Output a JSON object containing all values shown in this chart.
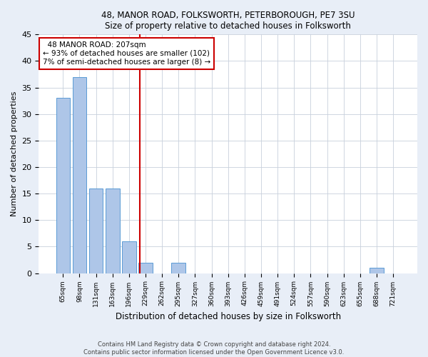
{
  "title1": "48, MANOR ROAD, FOLKSWORTH, PETERBOROUGH, PE7 3SU",
  "title2": "Size of property relative to detached houses in Folksworth",
  "xlabel": "Distribution of detached houses by size in Folksworth",
  "ylabel": "Number of detached properties",
  "categories": [
    "65sqm",
    "98sqm",
    "131sqm",
    "163sqm",
    "196sqm",
    "229sqm",
    "262sqm",
    "295sqm",
    "327sqm",
    "360sqm",
    "393sqm",
    "426sqm",
    "459sqm",
    "491sqm",
    "524sqm",
    "557sqm",
    "590sqm",
    "623sqm",
    "655sqm",
    "688sqm",
    "721sqm"
  ],
  "values": [
    33,
    37,
    16,
    16,
    6,
    2,
    0,
    2,
    0,
    0,
    0,
    0,
    0,
    0,
    0,
    0,
    0,
    0,
    0,
    1,
    0
  ],
  "bar_color": "#aec6e8",
  "bar_edge_color": "#5b9bd5",
  "vline_x": 4.67,
  "vline_color": "#cc0000",
  "annotation_text": "  48 MANOR ROAD: 207sqm\n← 93% of detached houses are smaller (102)\n7% of semi-detached houses are larger (8) →",
  "annotation_box_color": "#ffffff",
  "annotation_box_edge_color": "#cc0000",
  "ylim": [
    0,
    45
  ],
  "yticks": [
    0,
    5,
    10,
    15,
    20,
    25,
    30,
    35,
    40,
    45
  ],
  "footer1": "Contains HM Land Registry data © Crown copyright and database right 2024.",
  "footer2": "Contains public sector information licensed under the Open Government Licence v3.0.",
  "bg_color": "#e8eef7",
  "plot_bg_color": "#ffffff",
  "grid_color": "#c8d0dc"
}
